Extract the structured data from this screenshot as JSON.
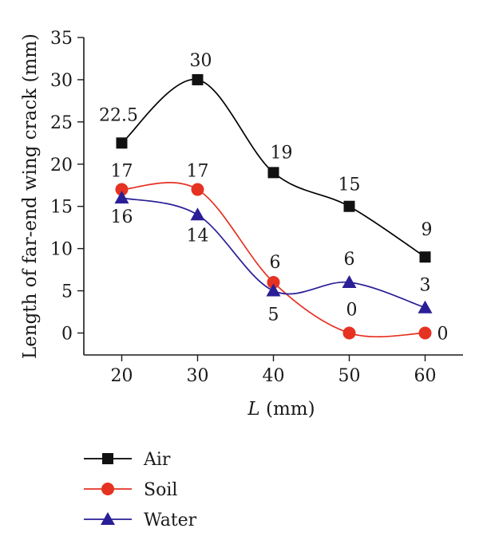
{
  "chart_data": {
    "type": "line",
    "xlabel": "L (mm)",
    "xlabel_italic_part": "L",
    "xlabel_rest": " (mm)",
    "ylabel": "Length of far-end wing crack (mm)",
    "xlim": [
      15,
      65
    ],
    "ylim": [
      -2.6,
      35
    ],
    "x": [
      20,
      30,
      40,
      50,
      60
    ],
    "xticks": [
      "20",
      "30",
      "40",
      "50",
      "60"
    ],
    "yticks": [
      "0",
      "5",
      "10",
      "15",
      "20",
      "25",
      "30",
      "35"
    ],
    "smooth": true,
    "legend_position": "bottom-left, outside plot",
    "series": [
      {
        "name": "Air",
        "color": "#000000",
        "marker": "square",
        "marker_color": "#111111",
        "values": [
          22.5,
          30,
          19,
          15,
          9
        ],
        "labels": [
          "22.5",
          "30",
          "19",
          "15",
          "9"
        ]
      },
      {
        "name": "Soil",
        "color": "#e53222",
        "marker": "circle",
        "marker_color": "#e53222",
        "values": [
          17,
          17,
          6,
          0,
          0
        ],
        "labels": [
          "17",
          "17",
          "6",
          "0",
          "0"
        ]
      },
      {
        "name": "Water",
        "color": "#2a1f96",
        "marker": "triangle",
        "marker_color": "#2a1f96",
        "values": [
          16,
          14,
          5,
          6,
          3
        ],
        "labels": [
          "16",
          "14",
          "5",
          "6",
          "3"
        ]
      }
    ]
  }
}
